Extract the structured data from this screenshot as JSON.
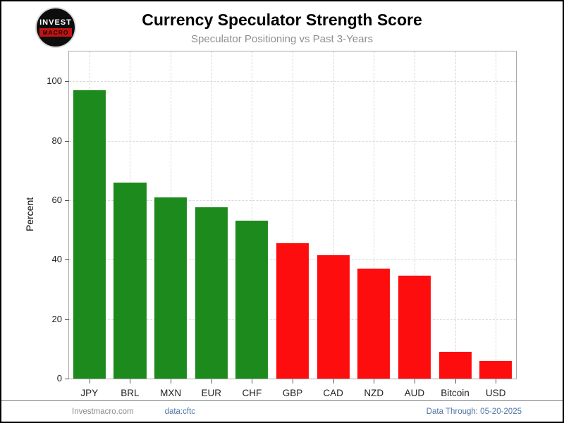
{
  "meta": {
    "title": "Currency Speculator Strength Score",
    "subtitle": "Speculator Positioning vs Past 3-Years"
  },
  "logo": {
    "line1": "INVEST",
    "line2": "MACRO"
  },
  "footer": {
    "site": "Investmacro.com",
    "source": "data:cftc",
    "data_through": "Data Through: 05-20-2025"
  },
  "chart_data": {
    "type": "bar",
    "title": "Currency Speculator Strength Score",
    "subtitle": "Speculator Positioning vs Past 3-Years",
    "xlabel": "",
    "ylabel": "Percent",
    "ylim": [
      0,
      110
    ],
    "yticks": [
      0,
      20,
      40,
      60,
      80,
      100
    ],
    "grid": "dashed-both-axes",
    "legend": "none",
    "categories": [
      "JPY",
      "BRL",
      "MXN",
      "EUR",
      "CHF",
      "GBP",
      "CAD",
      "NZD",
      "AUD",
      "Bitcoin",
      "USD"
    ],
    "values": [
      97,
      66,
      61,
      57.5,
      53,
      45.5,
      41.5,
      37,
      34.5,
      9,
      6
    ],
    "bar_colors": [
      "green",
      "green",
      "green",
      "green",
      "green",
      "red",
      "red",
      "red",
      "red",
      "red",
      "red"
    ],
    "colors": {
      "green": "#1c8a1c",
      "red": "#fd0d0d"
    }
  }
}
